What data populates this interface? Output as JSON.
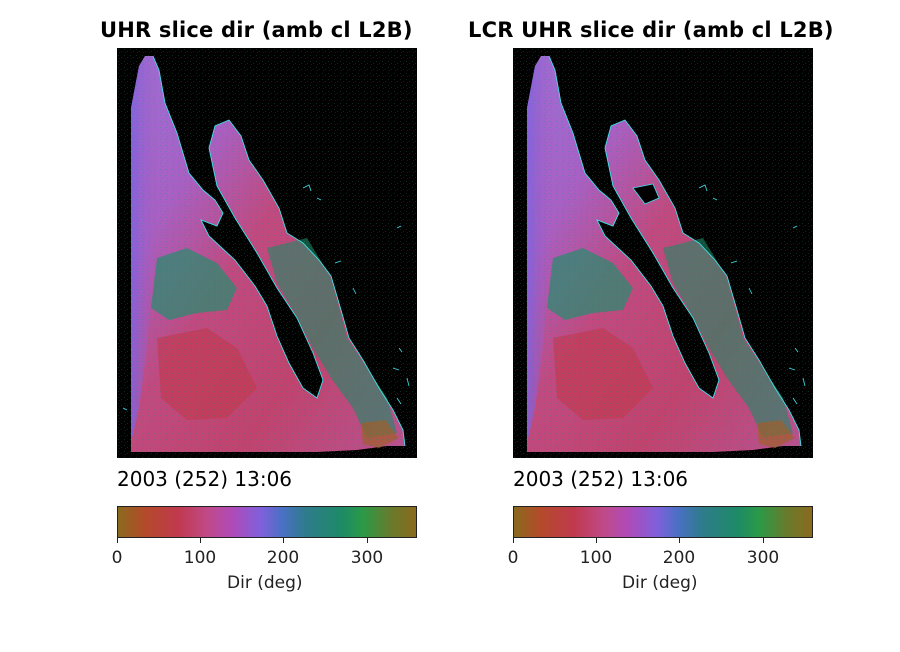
{
  "panels": [
    {
      "title": "UHR slice dir (amb cl L2B)",
      "date": "2003 (252) 13:06",
      "colorbar": {
        "ticks": [
          "0",
          "100",
          "200",
          "300"
        ],
        "label": "Dir (deg)",
        "range": [
          0,
          360
        ]
      }
    },
    {
      "title": "LCR UHR slice dir (amb cl L2B)",
      "date": "2003 (252) 13:06",
      "colorbar": {
        "ticks": [
          "0",
          "100",
          "200",
          "300"
        ],
        "label": "Dir (deg)",
        "range": [
          0,
          360
        ]
      }
    }
  ],
  "colors": {
    "background": "#000000",
    "coastline": "#3ee0e8",
    "colormap": [
      "#8a6a1e",
      "#b44a2a",
      "#c0394d",
      "#c04a88",
      "#b04ab6",
      "#8060dc",
      "#4a70c4",
      "#2e7c8c",
      "#1e8a66",
      "#2a9a48",
      "#6a7a2a",
      "#8a6a1e"
    ]
  }
}
